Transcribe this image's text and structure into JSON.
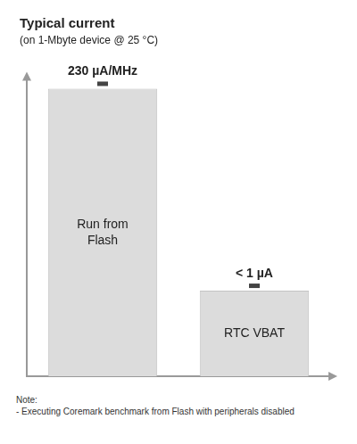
{
  "chart_data": {
    "type": "bar",
    "title": "Typical current",
    "subtitle": "(on 1-Mbyte device @ 25 °C)",
    "categories": [
      "Run from Flash",
      "RTC VBAT"
    ],
    "values": [
      230,
      1
    ],
    "value_labels": [
      "230 µA/MHz",
      "< 1 µA"
    ],
    "data_labels": true,
    "colors": [
      "#dcdcdc",
      "#dcdcdc"
    ],
    "log": "y",
    "ylim": [
      0.1,
      300
    ],
    "tick_labels": false,
    "grid": false,
    "annotations": [
      "Note:",
      "- Executing Coremark benchmark from Flash with peripherals disabled"
    ]
  }
}
